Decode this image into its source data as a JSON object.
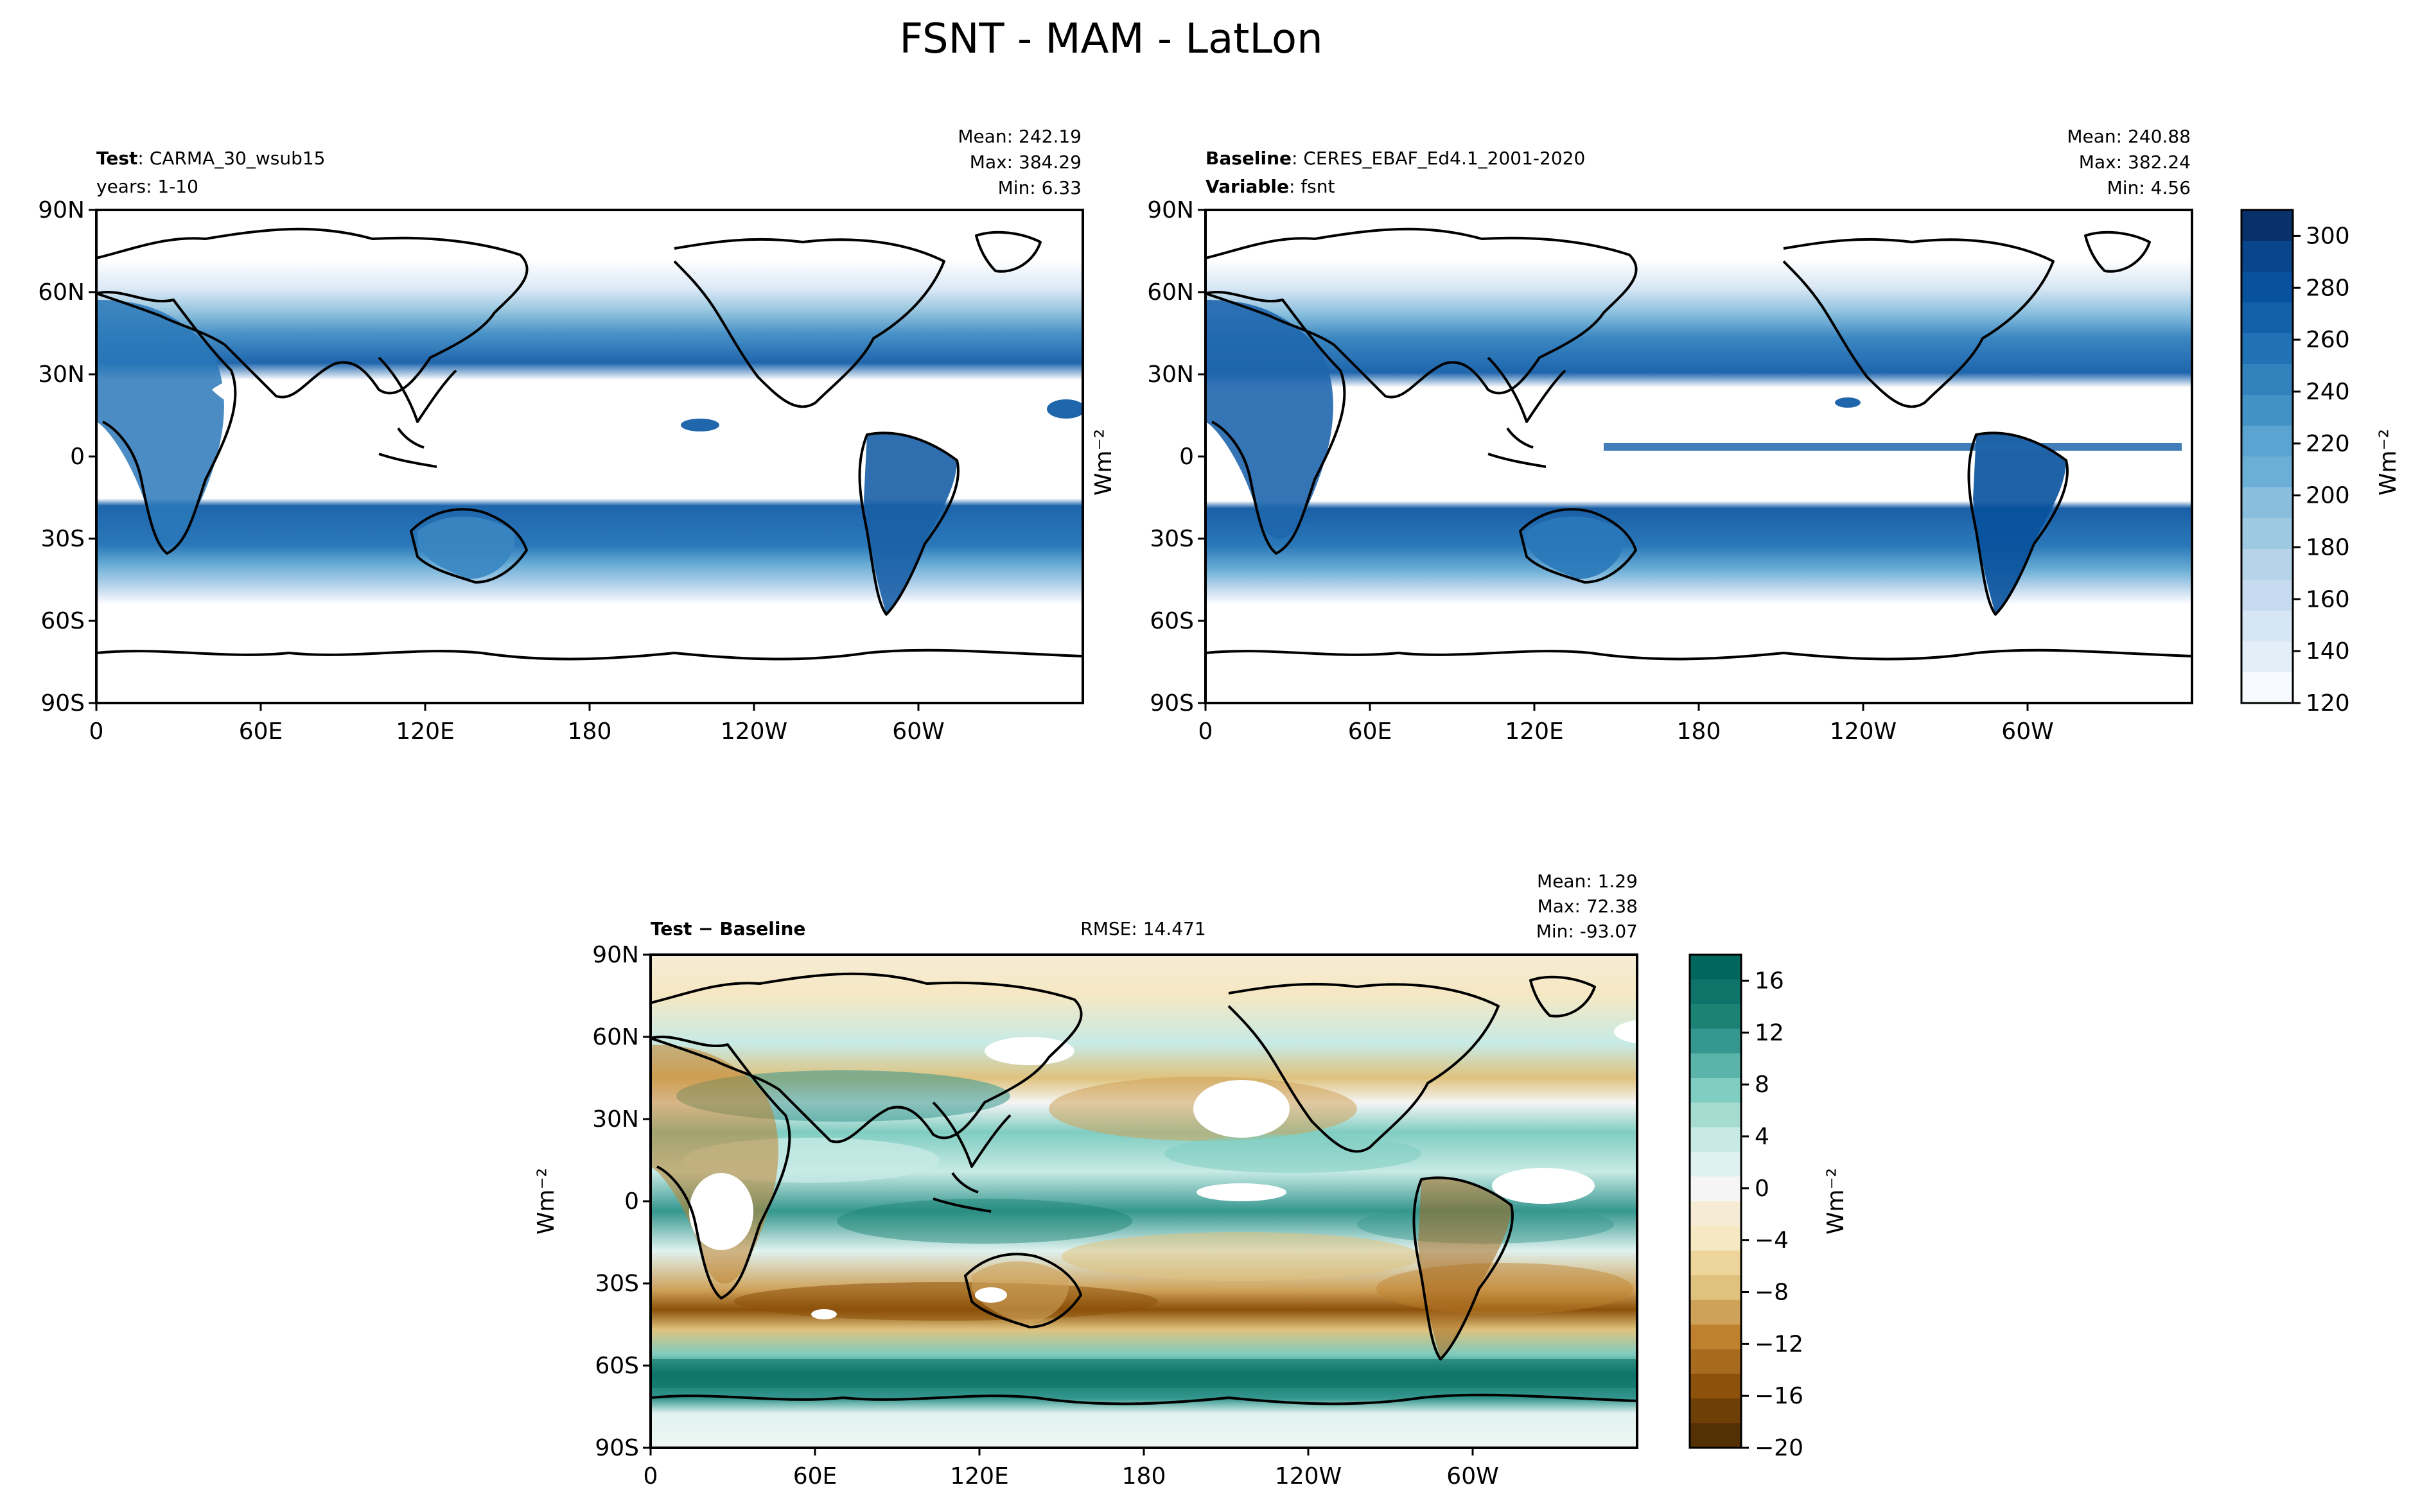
{
  "figure": {
    "title": "FSNT - MAM - LatLon"
  },
  "panels": {
    "test": {
      "label_bold": "Test",
      "label_rest": ": CARMA_30_wsub15",
      "line2": "years: 1-10",
      "stats": [
        "Mean: 242.19",
        "Max: 384.29",
        "Min:  6.33"
      ]
    },
    "baseline": {
      "label_bold": "Baseline",
      "label_rest": ": CERES_EBAF_Ed4.1_2001-2020",
      "line2_bold": "Variable",
      "line2_rest": ": fsnt",
      "stats": [
        "Mean: 240.88",
        "Max: 382.24",
        "Min:  4.56"
      ]
    },
    "diff": {
      "label": "Test − Baseline",
      "rmse": "RMSE: 14.471",
      "stats": [
        "Mean:  1.29",
        "Max: 72.38",
        "Min: -93.07"
      ]
    }
  },
  "axes": {
    "lat_ticks": [
      "90N",
      "60N",
      "30N",
      "0",
      "30S",
      "60S",
      "90S"
    ],
    "lon_ticks": [
      "0",
      "60E",
      "120E",
      "180",
      "120W",
      "60W"
    ],
    "unit_label": "Wm⁻²"
  },
  "chart_data": [
    {
      "type": "heatmap",
      "name": "test",
      "variable": "FSNT",
      "units": "Wm-2",
      "colorbar": "shared-top",
      "zlim": [
        120,
        310
      ],
      "xlim": [
        0,
        360
      ],
      "ylim": [
        -90,
        90
      ]
    },
    {
      "type": "heatmap",
      "name": "baseline",
      "variable": "fsnt",
      "units": "Wm-2",
      "zlim": [
        120,
        310
      ],
      "xlim": [
        0,
        360
      ],
      "ylim": [
        -90,
        90
      ]
    },
    {
      "type": "heatmap",
      "name": "difference",
      "units": "Wm-2",
      "zlim": [
        -20,
        18
      ],
      "xlim": [
        0,
        360
      ],
      "ylim": [
        -90,
        90
      ]
    }
  ],
  "colorbars": {
    "top": {
      "ticks": [
        "300",
        "280",
        "260",
        "240",
        "220",
        "200",
        "180",
        "160",
        "140",
        "120"
      ],
      "colors": [
        "#08306b",
        "#08458a",
        "#08519c",
        "#1361a9",
        "#2171b5",
        "#3182bd",
        "#4292c6",
        "#5ba3d0",
        "#6baed6",
        "#89bfdd",
        "#9ecae1",
        "#b5d4e9",
        "#c6dbef",
        "#d6e6f4",
        "#e3eef8",
        "#f7fbff"
      ]
    },
    "bottom": {
      "ticks": [
        "16",
        "12",
        "8",
        "4",
        "0",
        "−4",
        "−8",
        "−12",
        "−16",
        "−20"
      ],
      "colors": [
        "#01665e",
        "#0e7469",
        "#1b8274",
        "#35978f",
        "#5ab4a9",
        "#80cdc1",
        "#a6dbd0",
        "#c7eae5",
        "#e0f2ef",
        "#f5f5f5",
        "#f6ecd6",
        "#f6e8c3",
        "#ecd49a",
        "#dfc27d",
        "#cfa25a",
        "#bf812d",
        "#a86a1f",
        "#8c510a",
        "#6f3f08",
        "#543005"
      ]
    }
  },
  "style": {
    "land_color": "#000000",
    "test_blue": "#1f5fa8",
    "diff_green": "#1b8274",
    "diff_brown": "#a4661e"
  }
}
